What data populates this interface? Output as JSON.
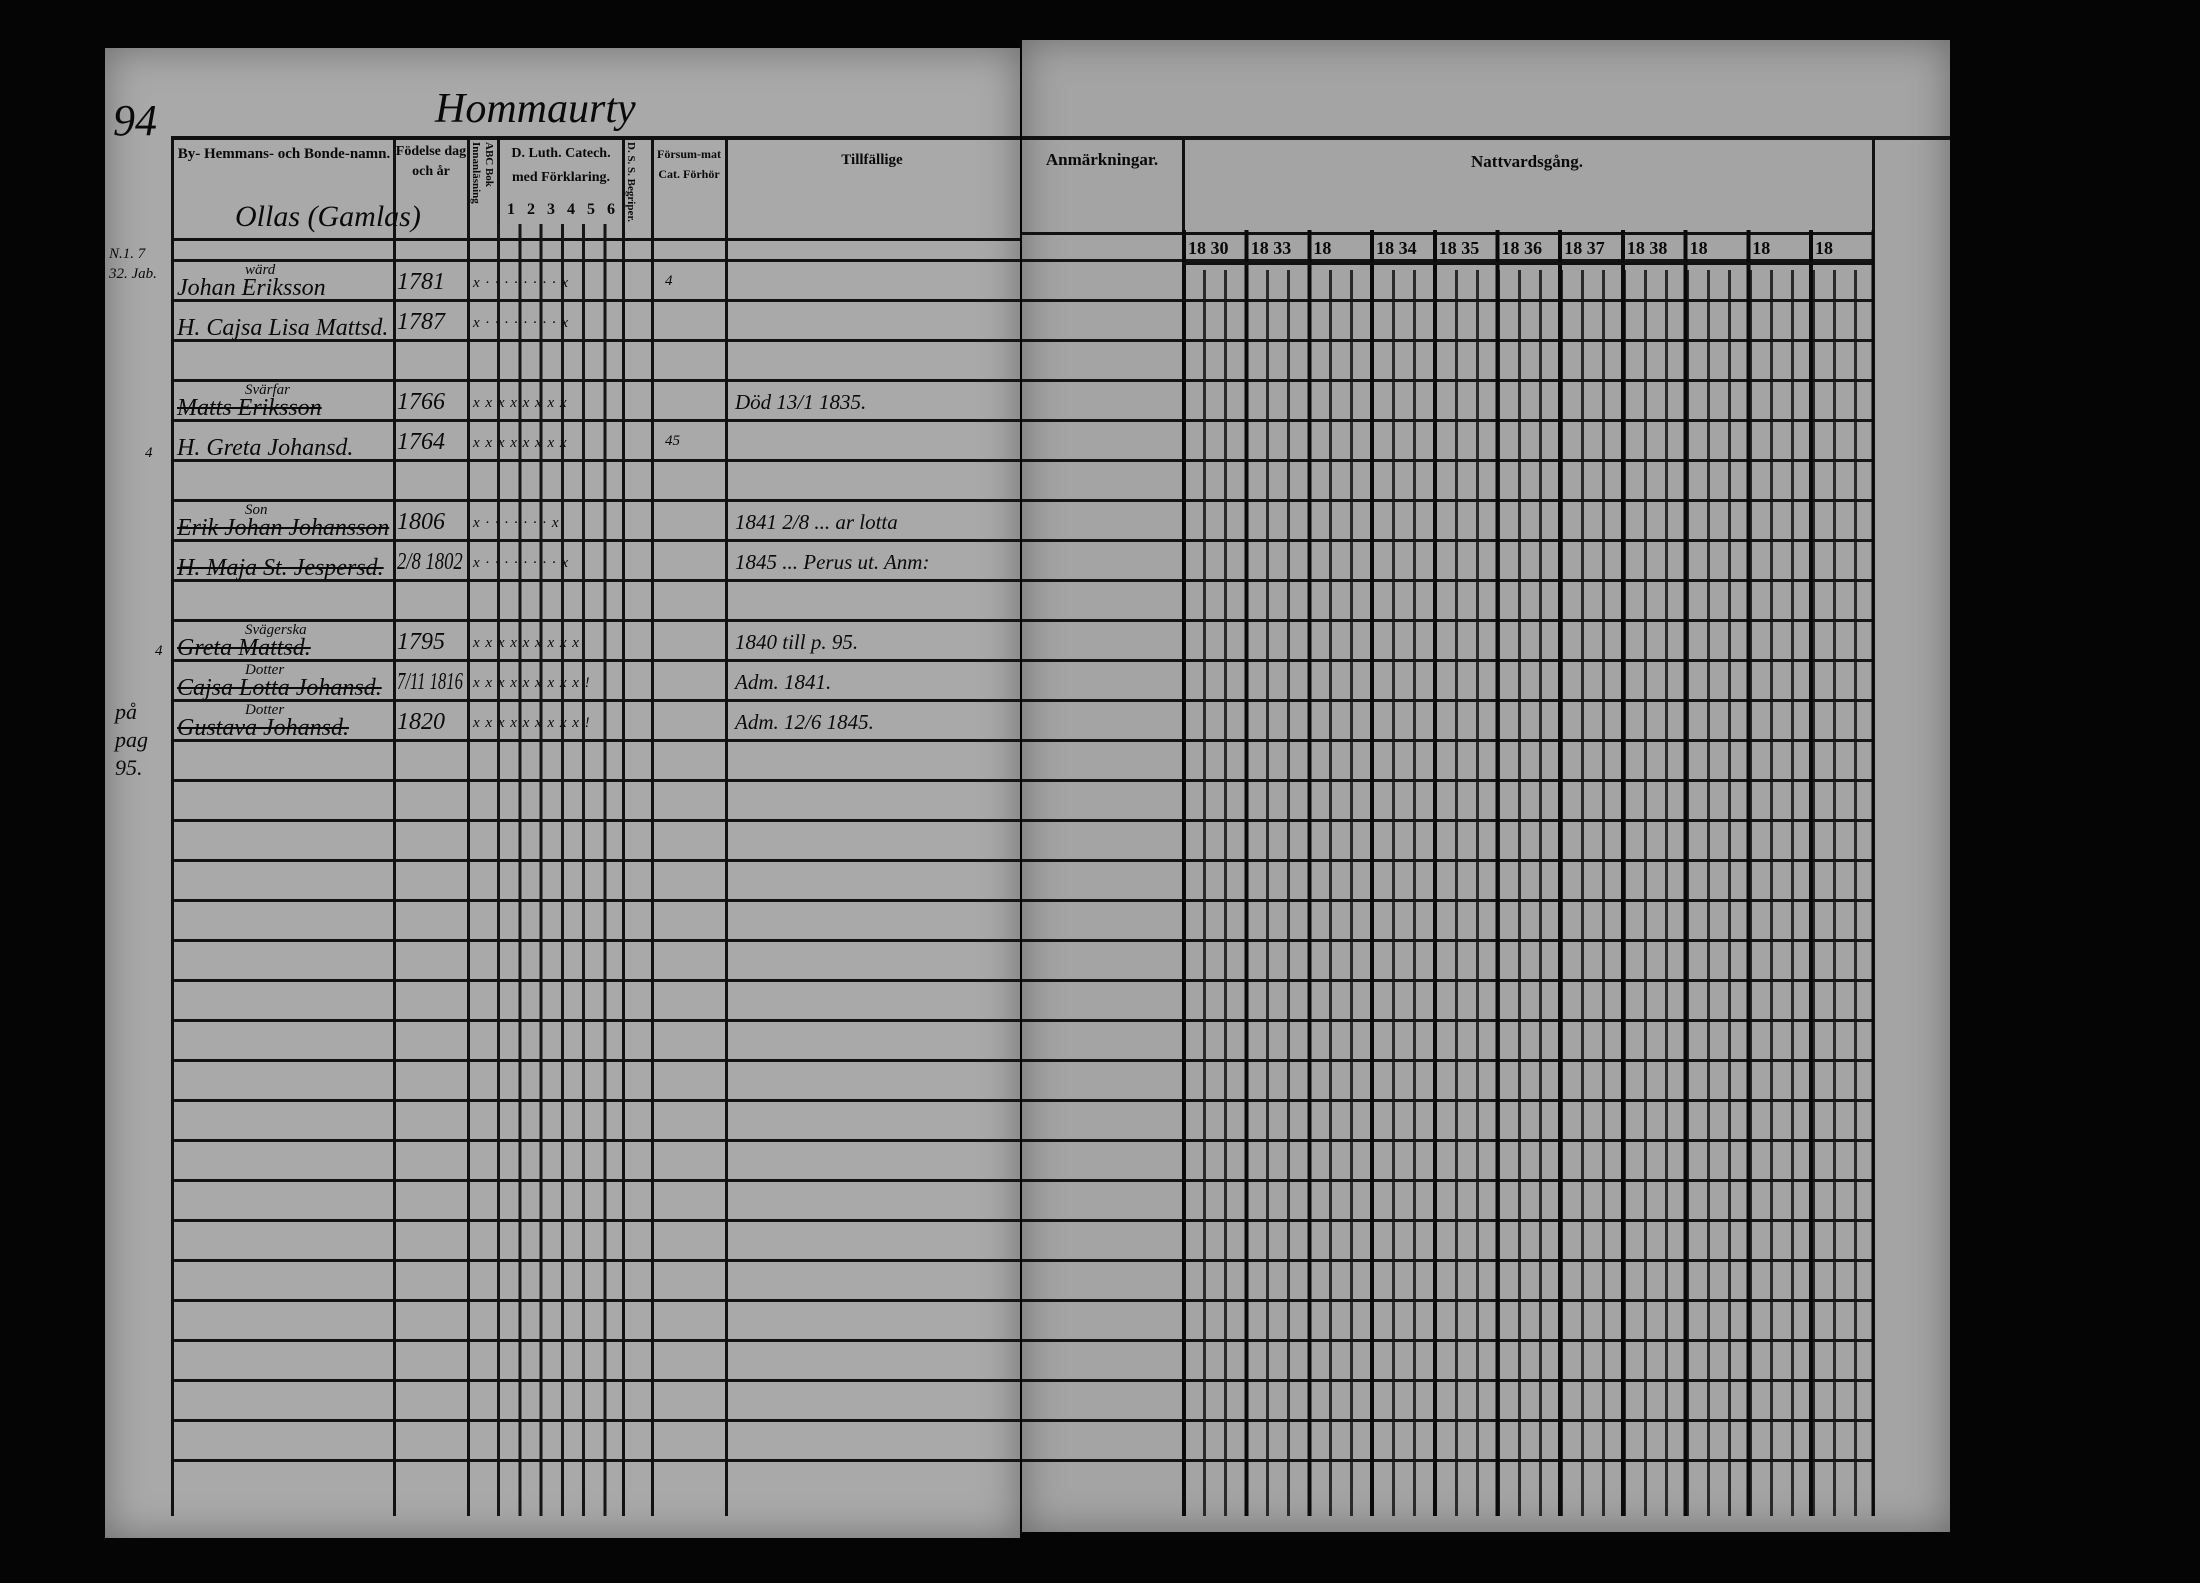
{
  "page_number": "94",
  "place_heading": "Hommaurty",
  "farm_name": "Ollas (Gamlas)",
  "left_headers": {
    "name": "By- Hemmans- och Bonde-namn.",
    "birth": "Födelse dag och år",
    "abc": "ABC Bok Innanläsning",
    "catechism": "D. Luth. Catech. med Förklaring.",
    "catechism_parts": [
      "1",
      "2",
      "3",
      "4",
      "5",
      "6"
    ],
    "dss": "D. S. S. Begriper.",
    "forsummat": "Försum-mat Cat. Förhör",
    "tillfallige": "Tillfällige"
  },
  "right_headers": {
    "anmarkningar": "Anmärkningar.",
    "nattvardsgang": "Nattvardsgång.",
    "years": [
      "18 30",
      "18 33",
      "18",
      "18 34",
      "18 35",
      "18 36",
      "18 37",
      "18 38",
      "18",
      "18",
      "18"
    ]
  },
  "margin_notes": {
    "household": "N.1. 7 32. Jab.",
    "greta": "4",
    "greta_m": "4",
    "page_ref": "på pag 95."
  },
  "entries": [
    {
      "row": 1,
      "above": "wärd",
      "name": "Johan Eriksson",
      "birth": "1781",
      "marks": "x · · · · · · · · x",
      "struck": false,
      "tillfallige": "",
      "forsummat": "4"
    },
    {
      "row": 2,
      "above": "",
      "name": "H. Cajsa Lisa Mattsd.",
      "birth": "1787",
      "marks": "x · · · · · · · · x",
      "struck": false,
      "tillfallige": "",
      "forsummat": ""
    },
    {
      "row": 4,
      "above": "Svärfar",
      "name": "Matts Eriksson",
      "birth": "1766",
      "marks": "x x x x x x x x",
      "struck": true,
      "tillfallige": "Död 13/1 1835.",
      "forsummat": ""
    },
    {
      "row": 5,
      "above": "",
      "name": "H. Greta Johansd.",
      "birth": "1764",
      "marks": "x x x x x x x x",
      "struck": false,
      "tillfallige": "",
      "forsummat": "45"
    },
    {
      "row": 7,
      "above": "Son",
      "name": "Erik Johan Johansson",
      "birth": "1806",
      "marks": "x · · · · · · · x",
      "struck": true,
      "tillfallige": "1841 2/8 ... ar lotta",
      "forsummat": ""
    },
    {
      "row": 8,
      "above": "",
      "name": "H. Maja St. Jespersd.",
      "birth": "2/8 1802",
      "marks": "x · · · · · · · · x",
      "struck": true,
      "tillfallige": "1845 ... Perus ut. Anm:",
      "forsummat": ""
    },
    {
      "row": 10,
      "above": "Svägerska",
      "name": "Greta Mattsd.",
      "birth": "1795",
      "marks": "x x x x x x x x x",
      "struck": true,
      "tillfallige": "1840 till p. 95.",
      "forsummat": ""
    },
    {
      "row": 11,
      "above": "Dotter",
      "name": "Cajsa Lotta Johansd.",
      "birth": "7/11 1816",
      "marks": "x x x x x x x x x !",
      "struck": true,
      "tillfallige": "Adm. 1841.",
      "forsummat": ""
    },
    {
      "row": 12,
      "above": "Dotter",
      "name": "Gustava Johansd.",
      "birth": "1820",
      "marks": "x x x x x x x x x !",
      "struck": true,
      "tillfallige": "Adm. 12/6 1845.",
      "forsummat": ""
    }
  ]
}
